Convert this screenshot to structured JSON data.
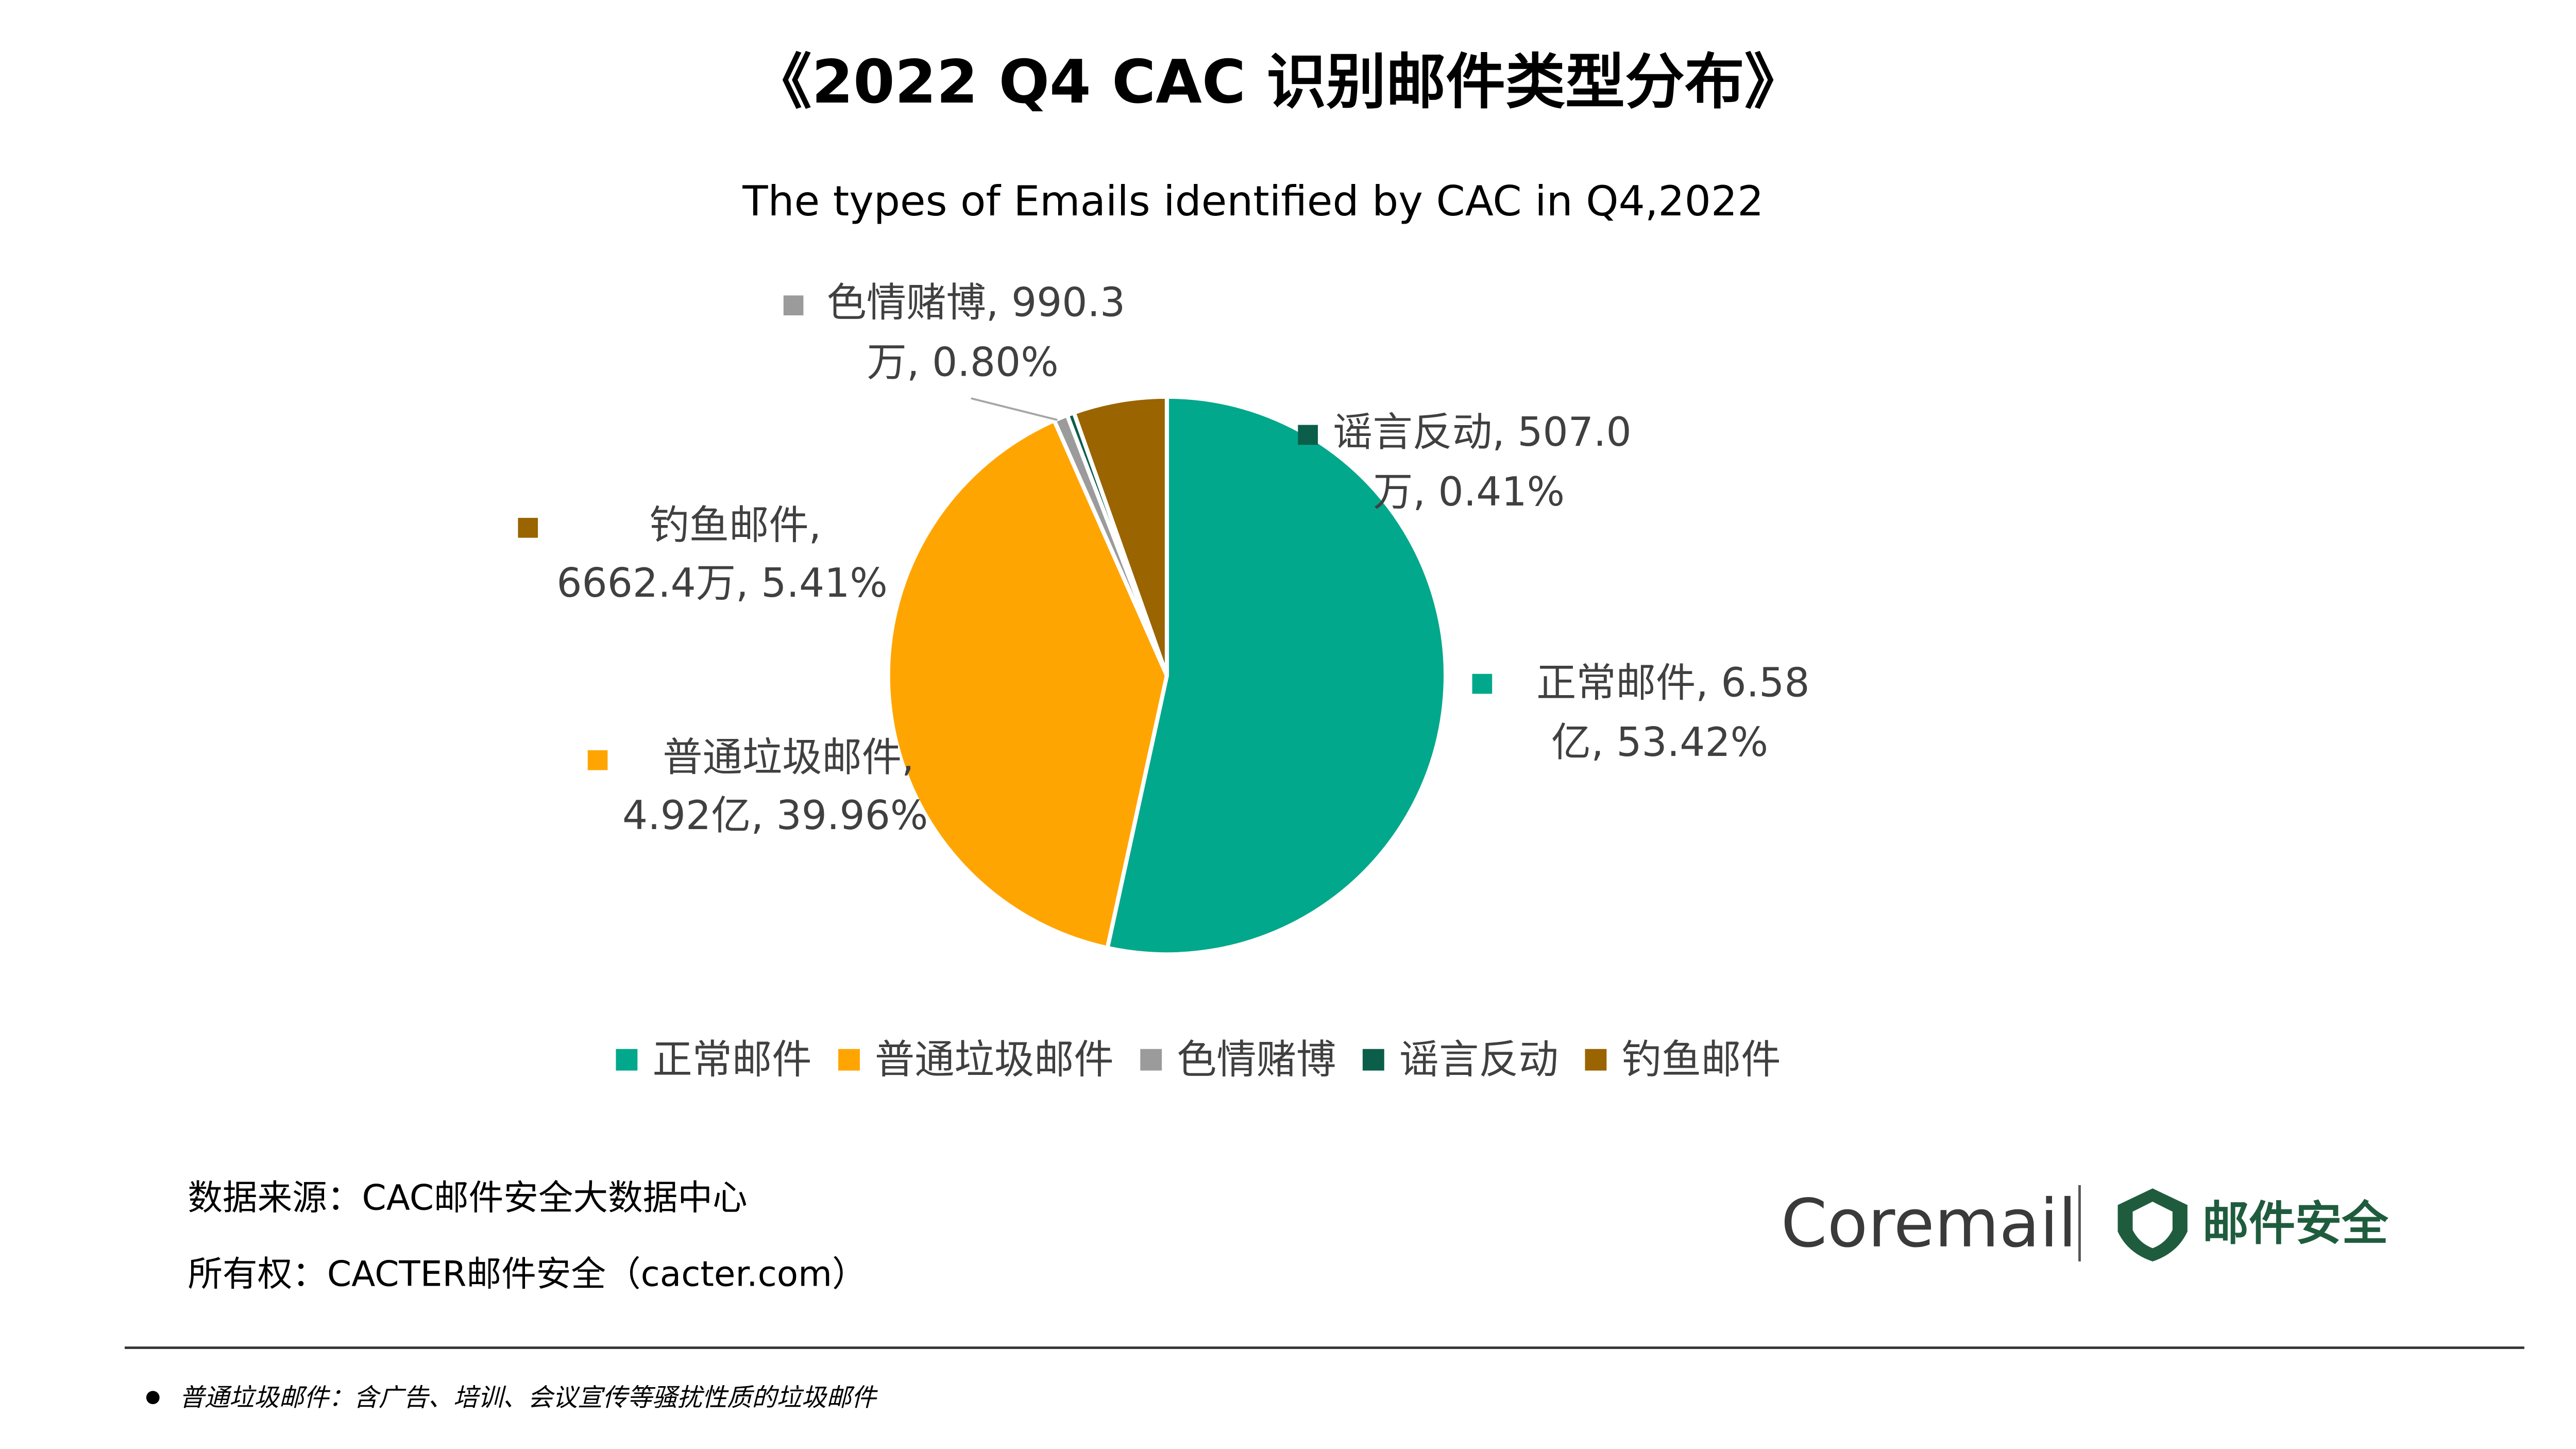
{
  "chart_data": {
    "type": "pie",
    "title": "《2022 Q4 CAC 识别邮件类型分布》",
    "subtitle": "The types of Emails  identified by CAC in Q4,2022",
    "categories": [
      "正常邮件",
      "普通垃圾邮件",
      "色情赌博",
      "谣言反动",
      "钓鱼邮件"
    ],
    "values": [
      53.42,
      39.96,
      0.8,
      0.41,
      5.41
    ],
    "colors": [
      "#02a88b",
      "#ffa502",
      "#9b9b9b",
      "#0b5e4a",
      "#9a6400"
    ],
    "value_labels": [
      [
        "正常邮件, 6.58",
        "亿, 53.42%"
      ],
      [
        "普通垃圾邮件,",
        "4.92亿, 39.96%"
      ],
      [
        "色情赌博, 990.3",
        "万, 0.80%"
      ],
      [
        "谣言反动, 507.0",
        "万, 0.41%"
      ],
      [
        "钓鱼邮件,",
        "6662.4万, 5.41%"
      ]
    ],
    "legend": "bottom"
  },
  "source": {
    "data_source": "数据来源：CAC邮件安全大数据中心",
    "ownership": "所有权：CACTER邮件安全（cacter.com）"
  },
  "logo": {
    "brand": "Coremail",
    "product": "邮件安全"
  },
  "footnote": "普通垃圾邮件：含广告、培训、会议宣传等骚扰性质的垃圾邮件"
}
